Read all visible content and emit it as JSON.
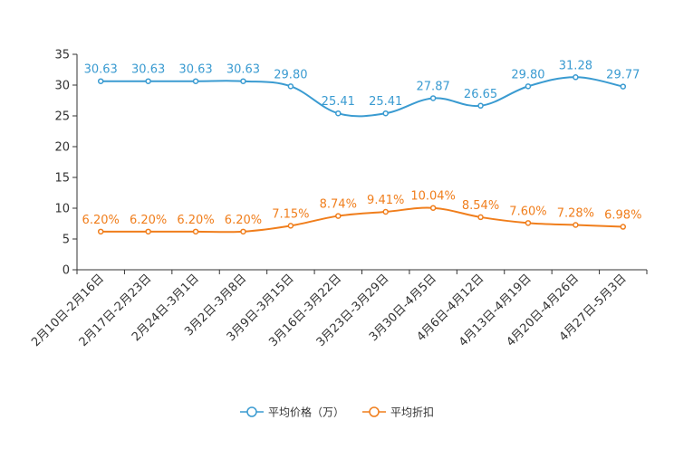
{
  "chart_data": {
    "type": "line",
    "title": "",
    "xlabel": "",
    "ylabel": "",
    "ylim": [
      0,
      35
    ],
    "yticks": [
      0,
      5,
      10,
      15,
      20,
      25,
      30,
      35
    ],
    "grid": false,
    "legend_position": "bottom-center",
    "categories": [
      "2月10日-2月16日",
      "2月17日-2月23日",
      "2月24日-3月1日",
      "3月2日-3月8日",
      "3月9日-3月15日",
      "3月16日-3月22日",
      "3月23日-3月29日",
      "3月30日-4月5日",
      "4月6日-4月12日",
      "4月13日-4月19日",
      "4月20日-4月26日",
      "4月27日-5月3日"
    ],
    "series": [
      {
        "name": "平均价格（万）",
        "color": "#3a9bd1",
        "values": [
          30.63,
          30.63,
          30.63,
          30.63,
          29.8,
          25.41,
          25.41,
          27.87,
          26.65,
          29.8,
          31.28,
          29.77
        ],
        "labels": [
          "30.63",
          "30.63",
          "30.63",
          "30.63",
          "29.80",
          "25.41",
          "25.41",
          "27.87",
          "26.65",
          "29.80",
          "31.28",
          "29.77"
        ]
      },
      {
        "name": "平均折扣",
        "color": "#f07e1c",
        "values": [
          6.2,
          6.2,
          6.2,
          6.2,
          7.15,
          8.74,
          9.41,
          10.04,
          8.54,
          7.6,
          7.28,
          6.98
        ],
        "labels": [
          "6.20%",
          "6.20%",
          "6.20%",
          "6.20%",
          "7.15%",
          "8.74%",
          "9.41%",
          "10.04%",
          "8.54%",
          "7.60%",
          "7.28%",
          "6.98%"
        ]
      }
    ]
  }
}
